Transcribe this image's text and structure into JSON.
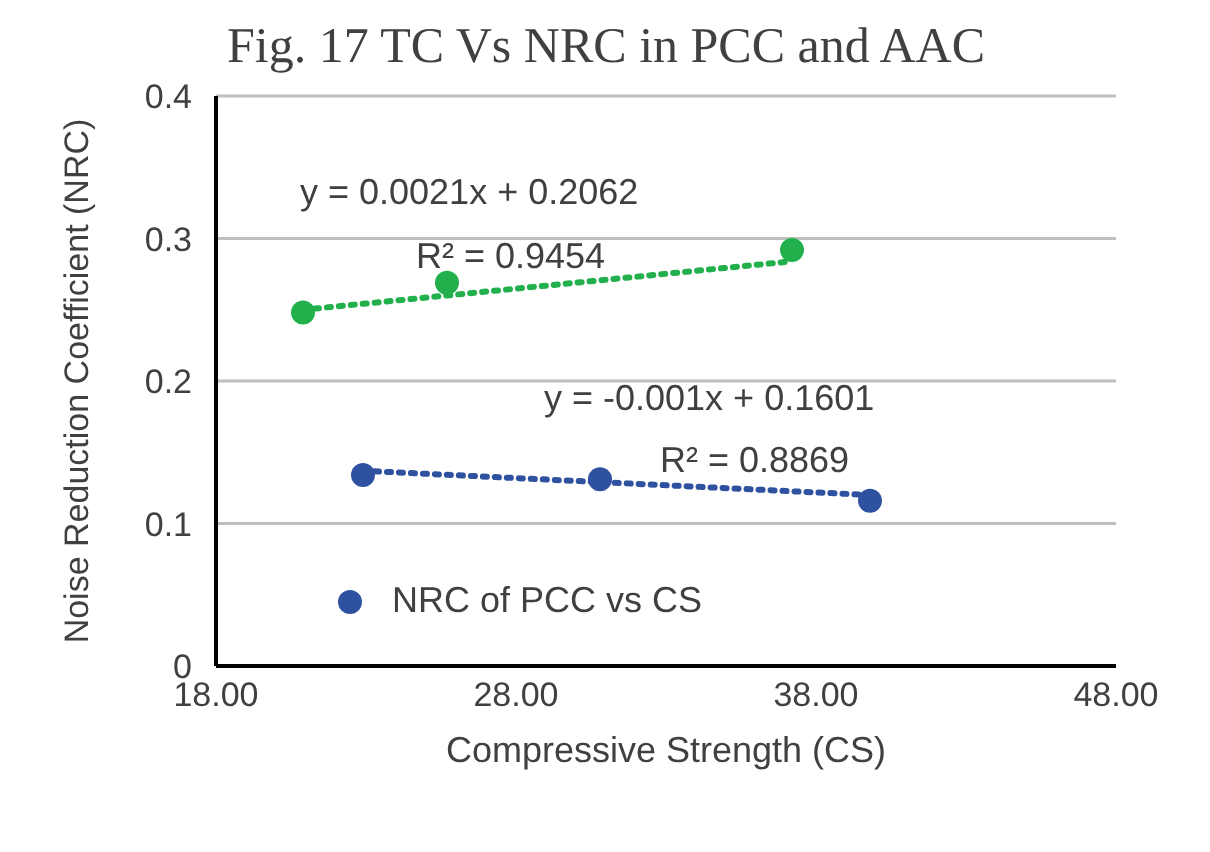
{
  "chart_data": {
    "type": "scatter",
    "title": "Fig. 17 TC Vs NRC in PCC and AAC",
    "xlabel": "Compressive Strength (CS)",
    "ylabel": "Noise Reduction Coefficient (NRC)",
    "xlim": [
      18,
      48
    ],
    "xticks": [
      {
        "value": 18,
        "label": "18.00"
      },
      {
        "value": 28,
        "label": "28.00"
      },
      {
        "value": 38,
        "label": "38.00"
      },
      {
        "value": 48,
        "label": "48.00"
      }
    ],
    "ylim": [
      0,
      0.4
    ],
    "yticks": [
      0,
      0.1,
      0.2,
      0.3,
      0.4
    ],
    "grid": "y",
    "legend": "bottom left",
    "marker": "circle",
    "series": [
      {
        "name": "NRC of PCC vs CS",
        "color": "#2f52a0",
        "x": [
          22.9,
          30.8,
          39.8
        ],
        "values": [
          0.134,
          0.131,
          0.116
        ]
      },
      {
        "color": "#21b04b",
        "x": [
          20.9,
          25.7,
          37.2
        ],
        "values": [
          0.248,
          0.269,
          0.292
        ]
      },
      {
        "type": "line",
        "color": "#21b04b",
        "line_style": "dotted",
        "marker": "none",
        "x": [
          20.9,
          37.2
        ],
        "values": [
          0.25,
          0.284
        ]
      },
      {
        "type": "line",
        "color": "#2f52a0",
        "line_style": "dotted",
        "marker": "none",
        "x": [
          22.9,
          39.8
        ],
        "values": [
          0.137,
          0.12
        ]
      }
    ],
    "annotations": [
      "y = 0.0021x + 0.2062",
      "R² = 0.9454",
      "y = -0.001x + 0.1601",
      "R² = 0.8869"
    ]
  }
}
